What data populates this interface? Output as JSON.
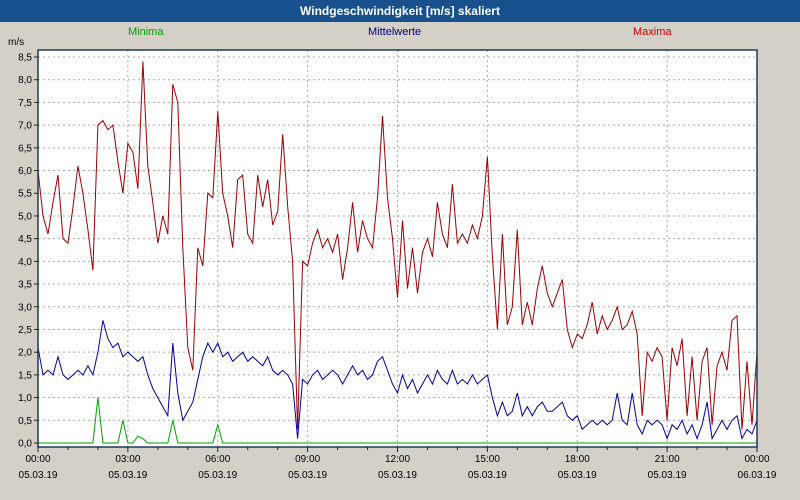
{
  "title": "Windgeschwindigkeit [m/s] skaliert",
  "y_axis_unit": "m/s",
  "legend": [
    {
      "key": "minima",
      "label": "Minima",
      "color": "#00a000"
    },
    {
      "key": "mittelwerte",
      "label": "Mittelwerte",
      "color": "#000080"
    },
    {
      "key": "maxima",
      "label": "Maxima",
      "color": "#cc0000"
    }
  ],
  "colors": {
    "title_bar": "#17508c",
    "background": "#d4d0c8",
    "plot_background": "#ffffff",
    "plot_border": "#1b3a5e",
    "grid": "#a8a8a8",
    "axis_text": "#000000"
  },
  "chart_data": {
    "type": "line",
    "title": "Windgeschwindigkeit [m/s] skaliert",
    "ylabel": "m/s",
    "ylim": [
      0,
      8.5
    ],
    "y_tick_step": 0.5,
    "y_tick_labels": [
      "8,5",
      "8,0",
      "7,5",
      "7,0",
      "6,5",
      "6,0",
      "5,5",
      "5,0",
      "4,5",
      "4,0",
      "3,5",
      "3,0",
      "2,5",
      "2,0",
      "1,5",
      "1,0",
      "0,5",
      "0,0"
    ],
    "x_tick_labels": [
      "00:00",
      "03:00",
      "06:00",
      "09:00",
      "12:00",
      "15:00",
      "18:00",
      "21:00",
      "00:00"
    ],
    "x_date_labels": [
      "05.03.19",
      "05.03.19",
      "05.03.19",
      "05.03.19",
      "05.03.19",
      "05.03.19",
      "05.03.19",
      "05.03.19",
      "06.03.19"
    ],
    "x_range_hours": 24,
    "sample_interval_minutes": 10,
    "grid": "dashed",
    "legend_position": "top",
    "series": [
      {
        "name": "Maxima",
        "color": "#990000",
        "values": [
          6.0,
          5.0,
          4.6,
          5.3,
          5.9,
          4.5,
          4.4,
          5.2,
          6.1,
          5.5,
          4.7,
          3.8,
          7.0,
          7.1,
          6.9,
          7.0,
          6.2,
          5.5,
          6.6,
          6.4,
          5.6,
          8.4,
          6.1,
          5.3,
          4.4,
          5.0,
          4.6,
          7.9,
          7.5,
          4.3,
          2.1,
          1.6,
          4.3,
          3.9,
          5.5,
          5.4,
          7.3,
          5.5,
          5.0,
          4.3,
          5.8,
          5.9,
          4.6,
          4.4,
          5.9,
          5.2,
          5.8,
          4.8,
          5.1,
          6.8,
          5.2,
          4.0,
          0.3,
          4.0,
          3.9,
          4.4,
          4.7,
          4.3,
          4.5,
          4.2,
          4.6,
          3.6,
          4.3,
          5.3,
          4.2,
          4.9,
          4.5,
          4.3,
          5.4,
          7.2,
          5.4,
          4.5,
          3.2,
          4.9,
          3.4,
          4.3,
          3.3,
          4.2,
          4.5,
          4.1,
          5.3,
          4.6,
          4.3,
          5.7,
          4.4,
          4.6,
          4.4,
          4.8,
          4.5,
          5.0,
          6.3,
          4.1,
          2.5,
          4.6,
          2.6,
          3.0,
          4.7,
          2.6,
          3.1,
          2.6,
          3.4,
          3.9,
          3.3,
          3.0,
          3.3,
          3.6,
          2.5,
          2.1,
          2.4,
          2.3,
          2.6,
          3.1,
          2.4,
          2.8,
          2.5,
          2.7,
          3.0,
          2.5,
          2.6,
          2.9,
          2.4,
          0.6,
          2.0,
          1.8,
          2.1,
          1.9,
          0.5,
          2.1,
          1.7,
          2.3,
          0.6,
          1.9,
          0.5,
          1.8,
          2.1,
          0.4,
          1.7,
          2.0,
          1.6,
          2.7,
          2.8,
          0.3,
          1.8,
          0.4,
          2.0
        ]
      },
      {
        "name": "Mittelwerte",
        "color": "#0000a0",
        "values": [
          2.1,
          1.5,
          1.6,
          1.5,
          1.9,
          1.5,
          1.4,
          1.5,
          1.6,
          1.5,
          1.7,
          1.5,
          2.0,
          2.7,
          2.3,
          2.1,
          2.2,
          1.9,
          2.0,
          1.9,
          1.8,
          1.9,
          1.5,
          1.2,
          1.0,
          0.8,
          0.6,
          2.2,
          1.1,
          0.5,
          0.7,
          0.9,
          1.4,
          1.9,
          2.2,
          2.0,
          2.2,
          1.9,
          2.0,
          1.8,
          1.9,
          2.0,
          1.8,
          1.9,
          1.8,
          1.7,
          1.9,
          1.6,
          1.5,
          1.6,
          1.5,
          1.3,
          0.1,
          1.4,
          1.3,
          1.5,
          1.6,
          1.4,
          1.5,
          1.6,
          1.5,
          1.3,
          1.5,
          1.7,
          1.5,
          1.6,
          1.4,
          1.5,
          1.8,
          1.9,
          1.6,
          1.3,
          1.1,
          1.5,
          1.2,
          1.4,
          1.1,
          1.3,
          1.5,
          1.3,
          1.6,
          1.4,
          1.3,
          1.6,
          1.3,
          1.4,
          1.3,
          1.5,
          1.3,
          1.4,
          1.5,
          1.0,
          0.6,
          0.9,
          0.6,
          0.7,
          1.1,
          0.6,
          0.8,
          0.6,
          0.8,
          0.9,
          0.7,
          0.7,
          0.8,
          0.9,
          0.6,
          0.5,
          0.6,
          0.3,
          0.4,
          0.5,
          0.4,
          0.5,
          0.4,
          0.5,
          1.1,
          0.5,
          0.4,
          1.1,
          0.4,
          0.2,
          0.5,
          0.4,
          0.5,
          0.4,
          0.1,
          0.4,
          0.3,
          0.5,
          0.2,
          0.4,
          0.1,
          0.4,
          0.9,
          0.1,
          0.3,
          0.5,
          0.3,
          0.5,
          0.6,
          0.1,
          0.3,
          0.2,
          0.5
        ]
      },
      {
        "name": "Minima",
        "color": "#00a000",
        "values": [
          0,
          0,
          0,
          0,
          0,
          0,
          0,
          0,
          0,
          0,
          0,
          0,
          1.0,
          0,
          0,
          0,
          0,
          0.5,
          0,
          0,
          0.15,
          0.1,
          0,
          0,
          0,
          0,
          0,
          0.5,
          0,
          0,
          0,
          0,
          0,
          0,
          0,
          0,
          0.4,
          0,
          0,
          0,
          0,
          0,
          0,
          0,
          0,
          0,
          0,
          0,
          0,
          0,
          0,
          0,
          0,
          0,
          0,
          0,
          0,
          0,
          0,
          0,
          0,
          0,
          0,
          0,
          0,
          0,
          0,
          0,
          0,
          0,
          0,
          0,
          0,
          0,
          0,
          0,
          0,
          0,
          0,
          0,
          0,
          0,
          0,
          0,
          0,
          0,
          0,
          0,
          0,
          0,
          0,
          0,
          0,
          0,
          0,
          0,
          0,
          0,
          0,
          0,
          0,
          0,
          0,
          0,
          0,
          0,
          0,
          0,
          0,
          0,
          0,
          0,
          0,
          0,
          0,
          0,
          0,
          0,
          0,
          0,
          0,
          0,
          0,
          0,
          0,
          0,
          0,
          0,
          0,
          0,
          0,
          0,
          0,
          0,
          0,
          0,
          0,
          0,
          0,
          0,
          0,
          0,
          0,
          0,
          0
        ]
      }
    ]
  }
}
